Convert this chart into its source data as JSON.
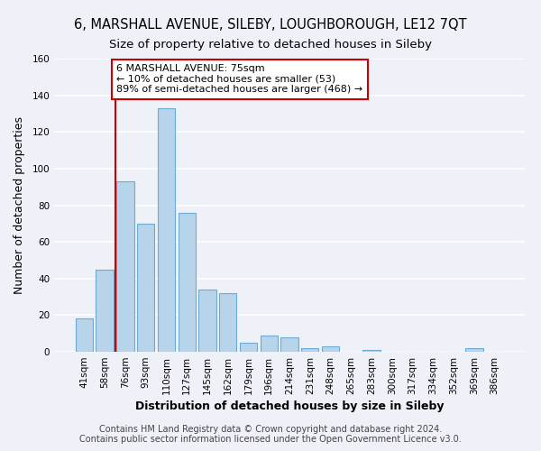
{
  "title": "6, MARSHALL AVENUE, SILEBY, LOUGHBOROUGH, LE12 7QT",
  "subtitle": "Size of property relative to detached houses in Sileby",
  "xlabel": "Distribution of detached houses by size in Sileby",
  "ylabel": "Number of detached properties",
  "bar_labels": [
    "41sqm",
    "58sqm",
    "76sqm",
    "93sqm",
    "110sqm",
    "127sqm",
    "145sqm",
    "162sqm",
    "179sqm",
    "196sqm",
    "214sqm",
    "231sqm",
    "248sqm",
    "265sqm",
    "283sqm",
    "300sqm",
    "317sqm",
    "334sqm",
    "352sqm",
    "369sqm",
    "386sqm"
  ],
  "bar_values": [
    18,
    45,
    93,
    70,
    133,
    76,
    34,
    32,
    5,
    9,
    8,
    2,
    3,
    0,
    1,
    0,
    0,
    0,
    0,
    2,
    0
  ],
  "bar_color": "#b8d4ea",
  "bar_edge_color": "#6aaad4",
  "vline_index": 2,
  "vline_color": "#cc0000",
  "ylim": [
    0,
    160
  ],
  "yticks": [
    0,
    20,
    40,
    60,
    80,
    100,
    120,
    140,
    160
  ],
  "annotation_title": "6 MARSHALL AVENUE: 75sqm",
  "annotation_line1": "← 10% of detached houses are smaller (53)",
  "annotation_line2": "89% of semi-detached houses are larger (468) →",
  "annotation_box_facecolor": "#ffffff",
  "annotation_box_edgecolor": "#cc0000",
  "footer_line1": "Contains HM Land Registry data © Crown copyright and database right 2024.",
  "footer_line2": "Contains public sector information licensed under the Open Government Licence v3.0.",
  "bg_color": "#eef2f8",
  "plot_bg_color": "#eef2f8",
  "grid_color": "#ffffff",
  "title_fontsize": 10.5,
  "subtitle_fontsize": 9.5,
  "axis_label_fontsize": 9,
  "tick_fontsize": 7.5,
  "annotation_fontsize": 8,
  "footer_fontsize": 7
}
